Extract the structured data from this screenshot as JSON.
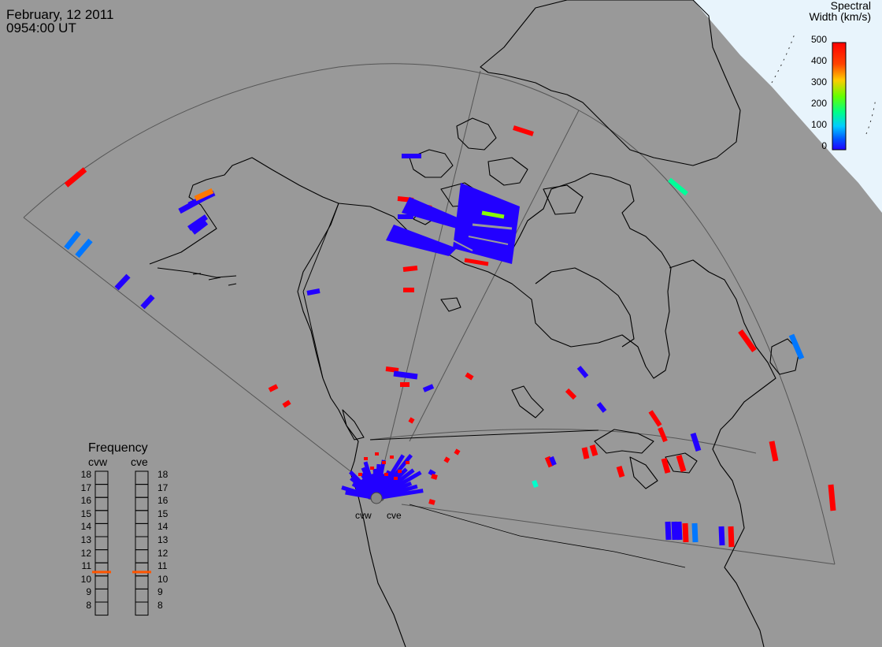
{
  "header": {
    "date": "February, 12 2011",
    "time": "0954:00 UT"
  },
  "legend": {
    "title_line1": "Spectral",
    "title_line2": "Width (km/s)",
    "ticks": [
      "500",
      "400",
      "300",
      "200",
      "100",
      "0"
    ],
    "min": 0,
    "max": 500
  },
  "frequency_panel": {
    "title": "Frequency",
    "radars": [
      "cvw",
      "cve"
    ],
    "scale": [
      "18",
      "17",
      "16",
      "15",
      "14",
      "13",
      "12",
      "11",
      "10",
      "9",
      "8"
    ],
    "selected": {
      "cvw": 10.8,
      "cve": 10.8
    }
  },
  "radars": {
    "west_label": "cvw",
    "east_label": "cve"
  },
  "colors": {
    "background": "#999999",
    "land_outline": "#000000",
    "ocean_light": "#e8f4fc",
    "marker": "#ff5500"
  }
}
